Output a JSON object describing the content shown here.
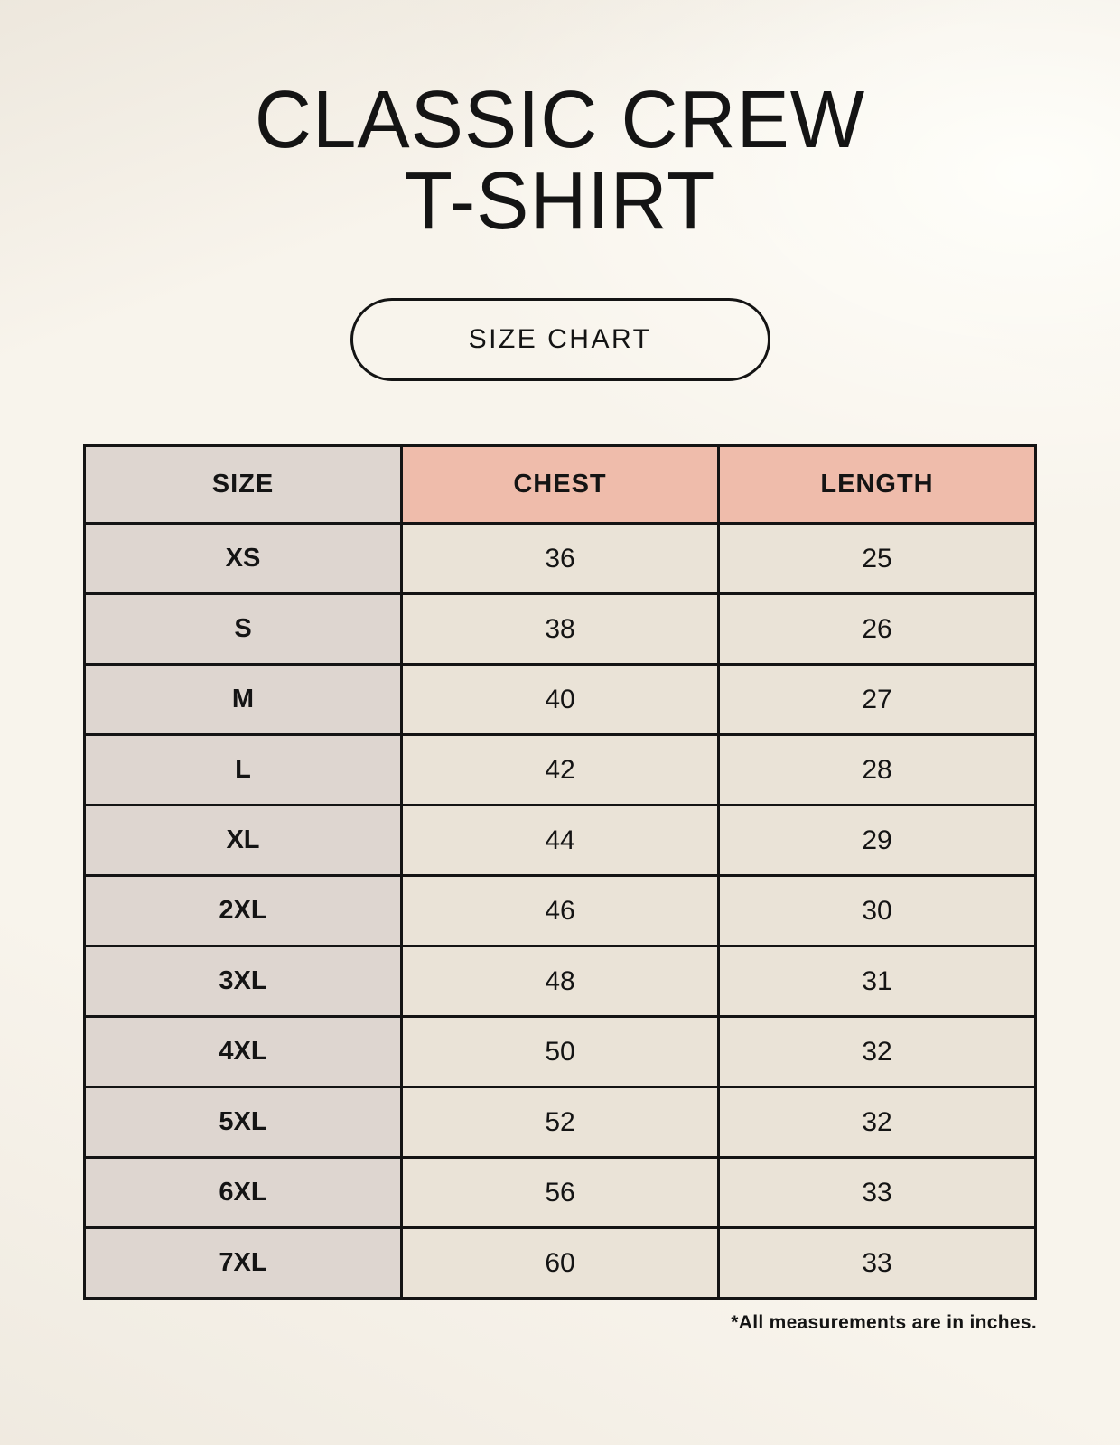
{
  "header": {
    "title_line1": "CLASSIC CREW",
    "title_line2": "T-SHIRT",
    "size_chart_label": "SIZE CHART"
  },
  "chart_data": {
    "type": "table",
    "title": "SIZE CHART",
    "columns": [
      "SIZE",
      "CHEST",
      "LENGTH"
    ],
    "rows": [
      [
        "XS",
        "36",
        "25"
      ],
      [
        "S",
        "38",
        "26"
      ],
      [
        "M",
        "40",
        "27"
      ],
      [
        "L",
        "42",
        "28"
      ],
      [
        "XL",
        "44",
        "29"
      ],
      [
        "2XL",
        "46",
        "30"
      ],
      [
        "3XL",
        "48",
        "31"
      ],
      [
        "4XL",
        "50",
        "32"
      ],
      [
        "5XL",
        "52",
        "32"
      ],
      [
        "6XL",
        "56",
        "33"
      ],
      [
        "7XL",
        "60",
        "33"
      ]
    ],
    "units": "inches"
  },
  "footnote": "*All measurements are in inches.",
  "colors": {
    "page_background": "#f8f4ec",
    "size_column_bg": "#ded6d0",
    "measure_header_bg": "#efbcab",
    "data_cell_bg": "#eae3d7",
    "table_border": "#141414",
    "text": "#141414"
  }
}
